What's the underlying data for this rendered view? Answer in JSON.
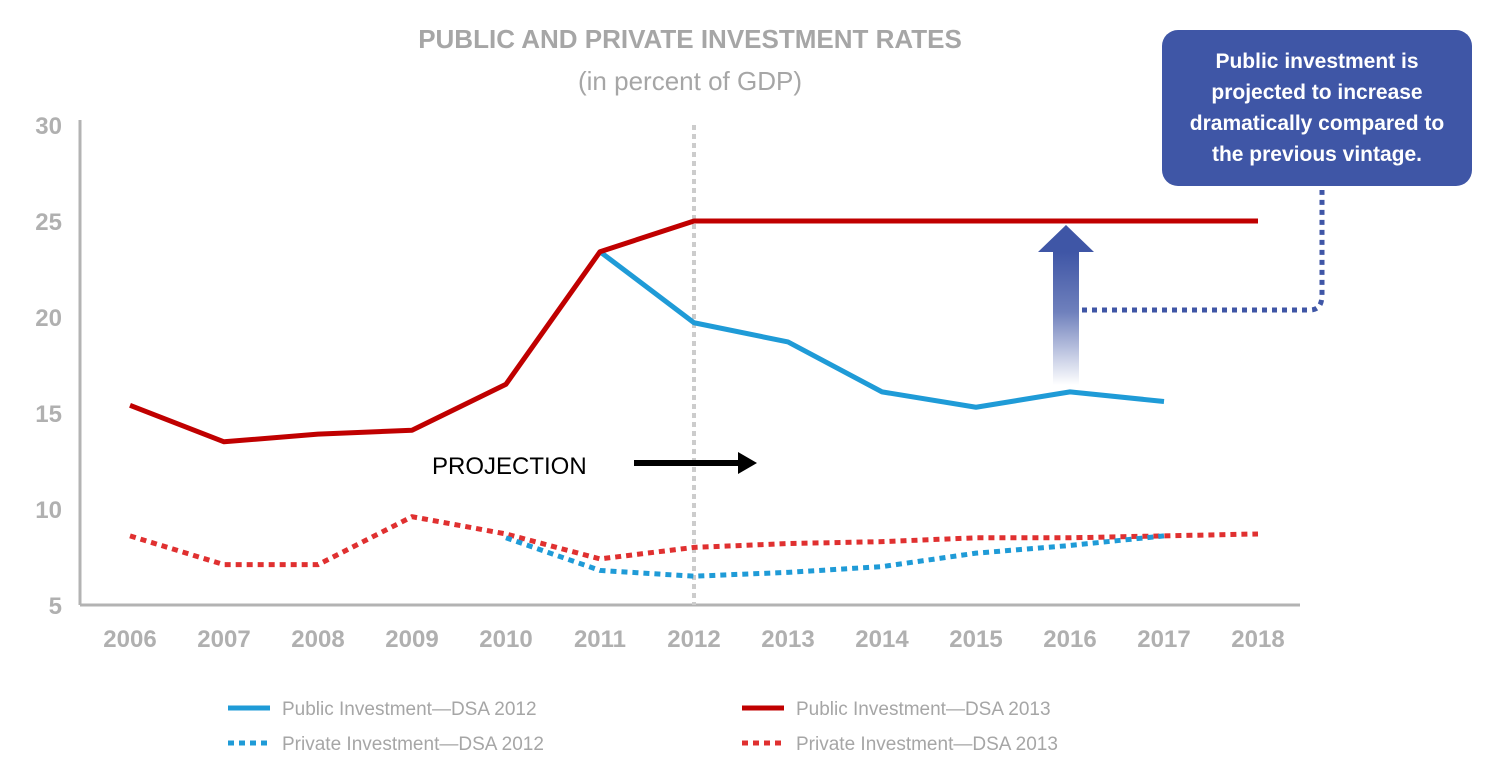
{
  "chart_data": {
    "type": "line",
    "title": "PUBLIC AND PRIVATE INVESTMENT RATES",
    "subtitle": "(in percent of GDP)",
    "categories": [
      "2006",
      "2007",
      "2008",
      "2009",
      "2010",
      "2011",
      "2012",
      "2013",
      "2014",
      "2015",
      "2016",
      "2017",
      "2018"
    ],
    "ylim": [
      5,
      30
    ],
    "yticks": [
      5,
      10,
      15,
      20,
      25,
      30
    ],
    "series": [
      {
        "name": "Public Investment—DSA 2012",
        "color": "#1f9bd7",
        "style": "solid",
        "values": [
          null,
          null,
          null,
          null,
          null,
          23.4,
          19.7,
          18.7,
          16.1,
          15.3,
          16.1,
          15.6,
          null
        ]
      },
      {
        "name": "Public Investment—DSA 2013",
        "color": "#c00000",
        "style": "solid",
        "values": [
          15.4,
          13.5,
          13.9,
          14.1,
          16.5,
          23.4,
          25.0,
          25.0,
          25.0,
          25.0,
          25.0,
          25.0,
          25.0
        ]
      },
      {
        "name": "Private Investment—DSA 2012",
        "color": "#1f9bd7",
        "style": "dotted",
        "values": [
          null,
          null,
          null,
          null,
          8.5,
          6.8,
          6.5,
          6.7,
          7.0,
          7.7,
          8.1,
          8.6,
          null
        ]
      },
      {
        "name": "Private Investment—DSA 2013",
        "color": "#e03030",
        "style": "dotted",
        "values": [
          8.6,
          7.1,
          7.1,
          9.6,
          8.7,
          7.4,
          8.0,
          8.2,
          8.3,
          8.5,
          8.5,
          8.6,
          8.7
        ]
      }
    ],
    "projection_start": "2012",
    "annotations": {
      "projection_label": "PROJECTION",
      "callout": "Public investment is projected to increase dramatically compared to the previous vintage."
    },
    "grid": false,
    "legend_position": "bottom"
  },
  "colors": {
    "axis": "#b3b3b3",
    "callout": "#3f56a6",
    "projection_line": "#cccccc",
    "projection_arrow": "#000000"
  }
}
